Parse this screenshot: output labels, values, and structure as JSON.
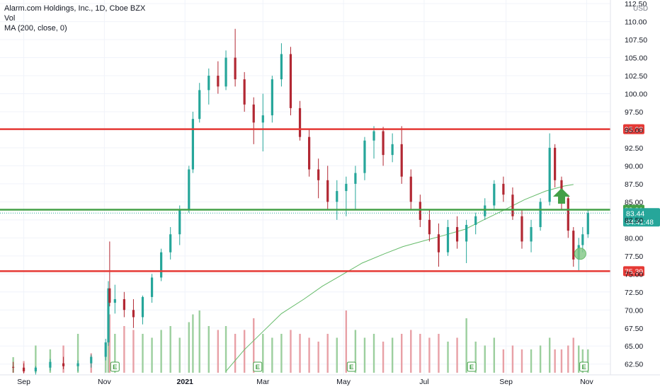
{
  "legend": {
    "title": "Alarm.com Holdings, Inc., 1D, Cboe BZX",
    "vol": "Vol",
    "ma": "MA (200, close, 0)"
  },
  "price_axis": {
    "currency": "USD",
    "ticks": [
      "112.50",
      "110.00",
      "107.50",
      "105.00",
      "102.50",
      "100.00",
      "97.50",
      "95.00",
      "92.50",
      "90.00",
      "87.50",
      "85.00",
      "82.50",
      "80.00",
      "77.50",
      "75.00",
      "72.50",
      "70.00",
      "67.50",
      "65.00",
      "62.50"
    ]
  },
  "time_axis": {
    "labels": [
      "Sep",
      "Nov",
      "2021",
      "Mar",
      "May",
      "Jul",
      "Sep",
      "Nov"
    ]
  },
  "levels": [
    {
      "name": "resistance-line",
      "value": 95.08,
      "label": "95.08",
      "color": "#e53935"
    },
    {
      "name": "breakout-line",
      "value": 83.91,
      "label": "83.91",
      "color": "#43a047"
    },
    {
      "name": "support-line",
      "value": 75.39,
      "label": "75.39",
      "color": "#e53935"
    }
  ],
  "last_price": {
    "label": "83.44",
    "countdown": "04:41:48",
    "color": "#26a69a"
  },
  "earnings_markers": [
    "E",
    "E",
    "E",
    "E",
    "E"
  ],
  "colors": {
    "up": "#26a69a",
    "down": "#b22833",
    "vol_up": "#9ccf9e",
    "vol_down": "#e8a0a6",
    "ma": "#66bb6a",
    "arrow": "#43a047",
    "circle": "#81c784"
  },
  "chart_data": {
    "type": "candlestick",
    "title": "Alarm.com Holdings, Inc., 1D, Cboe BZX",
    "ylim": [
      61,
      113
    ],
    "x_start": "2020-08-14",
    "x_end": "2021-11-19",
    "candles_key": [
      "date",
      "open",
      "high",
      "low",
      "close"
    ],
    "candles": [
      [
        "2020-08-24",
        62.1,
        62.8,
        61.3,
        62.0
      ],
      [
        "2020-09-01",
        62.0,
        62.6,
        61.2,
        61.5
      ],
      [
        "2020-09-10",
        61.5,
        62.2,
        61.0,
        62.0
      ],
      [
        "2020-09-21",
        62.0,
        63.2,
        61.6,
        62.8
      ],
      [
        "2020-10-01",
        62.6,
        63.5,
        61.8,
        62.2
      ],
      [
        "2020-10-12",
        62.2,
        63.0,
        61.5,
        62.6
      ],
      [
        "2020-10-22",
        62.6,
        63.8,
        62.0,
        63.5
      ],
      [
        "2020-11-02",
        63.5,
        66.0,
        63.0,
        65.5
      ],
      [
        "2020-11-04",
        65.5,
        74.0,
        65.0,
        73.0
      ],
      [
        "2020-11-05",
        73.0,
        79.5,
        70.5,
        71.0
      ],
      [
        "2020-11-09",
        71.0,
        73.5,
        69.5,
        71.5
      ],
      [
        "2020-11-16",
        71.5,
        72.5,
        69.0,
        70.0
      ],
      [
        "2020-11-23",
        70.0,
        71.5,
        67.5,
        69.0
      ],
      [
        "2020-11-30",
        69.0,
        72.0,
        68.0,
        71.8
      ],
      [
        "2020-12-07",
        71.8,
        75.0,
        71.0,
        74.5
      ],
      [
        "2020-12-14",
        74.5,
        78.5,
        74.0,
        78.0
      ],
      [
        "2020-12-21",
        78.0,
        81.5,
        77.0,
        80.5
      ],
      [
        "2020-12-28",
        80.5,
        84.5,
        79.0,
        84.0
      ],
      [
        "2021-01-04",
        84.0,
        90.0,
        83.5,
        89.5
      ],
      [
        "2021-01-07",
        89.5,
        97.5,
        89.0,
        96.5
      ],
      [
        "2021-01-12",
        96.5,
        101.5,
        96.0,
        100.5
      ],
      [
        "2021-01-19",
        100.5,
        103.5,
        98.5,
        102.5
      ],
      [
        "2021-01-26",
        102.5,
        104.5,
        100.0,
        101.0
      ],
      [
        "2021-02-01",
        101.0,
        106.0,
        100.5,
        105.0
      ],
      [
        "2021-02-08",
        105.0,
        109.0,
        101.0,
        102.0
      ],
      [
        "2021-02-15",
        102.0,
        103.0,
        97.5,
        98.5
      ],
      [
        "2021-02-22",
        98.5,
        99.5,
        93.0,
        96.0
      ],
      [
        "2021-03-01",
        96.0,
        100.0,
        92.0,
        97.0
      ],
      [
        "2021-03-08",
        97.0,
        102.5,
        96.0,
        102.0
      ],
      [
        "2021-03-15",
        102.0,
        107.0,
        101.0,
        105.5
      ],
      [
        "2021-03-22",
        105.5,
        106.5,
        97.0,
        98.0
      ],
      [
        "2021-03-29",
        98.0,
        99.0,
        93.5,
        94.0
      ],
      [
        "2021-04-05",
        94.0,
        95.0,
        88.5,
        89.5
      ],
      [
        "2021-04-12",
        89.5,
        91.0,
        85.5,
        88.0
      ],
      [
        "2021-04-19",
        88.0,
        90.0,
        84.0,
        85.0
      ],
      [
        "2021-04-26",
        85.0,
        88.0,
        82.5,
        86.5
      ],
      [
        "2021-05-03",
        86.5,
        88.5,
        83.0,
        87.5
      ],
      [
        "2021-05-10",
        87.5,
        90.0,
        84.0,
        89.0
      ],
      [
        "2021-05-17",
        89.0,
        94.0,
        88.0,
        93.5
      ],
      [
        "2021-05-24",
        93.5,
        95.5,
        91.0,
        94.8
      ],
      [
        "2021-05-31",
        94.8,
        95.4,
        90.0,
        91.5
      ],
      [
        "2021-06-07",
        91.5,
        94.5,
        90.5,
        93.0
      ],
      [
        "2021-06-14",
        93.0,
        95.5,
        87.5,
        88.5
      ],
      [
        "2021-06-21",
        88.5,
        89.5,
        84.0,
        85.0
      ],
      [
        "2021-06-28",
        85.0,
        86.0,
        81.5,
        82.5
      ],
      [
        "2021-07-05",
        82.5,
        84.0,
        79.5,
        80.5
      ],
      [
        "2021-07-12",
        80.5,
        82.0,
        76.0,
        78.0
      ],
      [
        "2021-07-19",
        78.0,
        82.5,
        77.5,
        81.5
      ],
      [
        "2021-07-26",
        81.5,
        83.0,
        78.5,
        79.5
      ],
      [
        "2021-08-02",
        79.5,
        82.5,
        76.5,
        81.8
      ],
      [
        "2021-08-09",
        81.8,
        83.5,
        80.5,
        83.0
      ],
      [
        "2021-08-16",
        83.0,
        85.5,
        82.5,
        84.5
      ],
      [
        "2021-08-23",
        84.5,
        88.0,
        84.0,
        87.5
      ],
      [
        "2021-08-30",
        87.5,
        88.5,
        85.0,
        86.0
      ],
      [
        "2021-09-06",
        86.0,
        87.0,
        82.5,
        83.0
      ],
      [
        "2021-09-13",
        83.0,
        84.0,
        78.5,
        79.5
      ],
      [
        "2021-09-20",
        79.5,
        82.5,
        78.0,
        81.5
      ],
      [
        "2021-09-27",
        81.5,
        85.5,
        81.0,
        85.0
      ],
      [
        "2021-10-04",
        85.0,
        94.5,
        84.5,
        92.5
      ],
      [
        "2021-10-08",
        92.5,
        93.0,
        87.0,
        88.0
      ],
      [
        "2021-10-13",
        88.0,
        88.5,
        84.0,
        85.5
      ],
      [
        "2021-10-18",
        85.5,
        86.0,
        80.0,
        81.0
      ],
      [
        "2021-10-22",
        81.0,
        81.5,
        76.0,
        77.0
      ],
      [
        "2021-10-26",
        77.0,
        80.0,
        75.5,
        79.0
      ],
      [
        "2021-10-29",
        79.0,
        81.5,
        78.0,
        80.5
      ],
      [
        "2021-11-02",
        80.5,
        84.0,
        80.0,
        83.44
      ]
    ],
    "ma200": {
      "name": "MA (200, close, 0)",
      "points": [
        [
          "2021-02-01",
          61.5
        ],
        [
          "2021-02-15",
          64.5
        ],
        [
          "2021-03-01",
          67.0
        ],
        [
          "2021-03-15",
          69.5
        ],
        [
          "2021-04-01",
          71.5
        ],
        [
          "2021-04-15",
          73.3
        ],
        [
          "2021-05-01",
          75.0
        ],
        [
          "2021-05-15",
          76.5
        ],
        [
          "2021-06-01",
          77.8
        ],
        [
          "2021-06-15",
          78.8
        ],
        [
          "2021-07-01",
          79.6
        ],
        [
          "2021-07-15",
          80.3
        ],
        [
          "2021-08-01",
          81.2
        ],
        [
          "2021-08-15",
          82.5
        ],
        [
          "2021-09-01",
          84.0
        ],
        [
          "2021-09-15",
          85.3
        ],
        [
          "2021-10-01",
          86.5
        ],
        [
          "2021-10-15",
          87.2
        ],
        [
          "2021-10-22",
          87.4
        ]
      ]
    },
    "volume": {
      "scale_note": "relative bar heights",
      "bars": [
        [
          "2020-08-24",
          0.2,
          1
        ],
        [
          "2020-09-01",
          0.15,
          0
        ],
        [
          "2020-09-10",
          0.35,
          1
        ],
        [
          "2020-09-21",
          0.3,
          1
        ],
        [
          "2020-10-01",
          0.35,
          0
        ],
        [
          "2020-10-12",
          0.5,
          1
        ],
        [
          "2020-10-22",
          0.25,
          0
        ],
        [
          "2020-11-02",
          0.35,
          1
        ],
        [
          "2020-11-04",
          0.95,
          1
        ],
        [
          "2020-11-05",
          0.75,
          0
        ],
        [
          "2020-11-09",
          0.5,
          1
        ],
        [
          "2020-11-16",
          0.6,
          0
        ],
        [
          "2020-11-23",
          0.55,
          0
        ],
        [
          "2020-11-30",
          0.5,
          1
        ],
        [
          "2020-12-07",
          0.45,
          1
        ],
        [
          "2020-12-14",
          0.55,
          1
        ],
        [
          "2020-12-21",
          0.6,
          1
        ],
        [
          "2020-12-28",
          0.45,
          1
        ],
        [
          "2021-01-04",
          0.65,
          1
        ],
        [
          "2021-01-07",
          0.75,
          1
        ],
        [
          "2021-01-12",
          0.8,
          1
        ],
        [
          "2021-01-19",
          0.6,
          1
        ],
        [
          "2021-01-26",
          0.55,
          0
        ],
        [
          "2021-02-01",
          0.6,
          1
        ],
        [
          "2021-02-08",
          0.5,
          0
        ],
        [
          "2021-02-15",
          0.55,
          0
        ],
        [
          "2021-02-22",
          0.7,
          0
        ],
        [
          "2021-03-01",
          0.5,
          1
        ],
        [
          "2021-03-08",
          0.45,
          1
        ],
        [
          "2021-03-15",
          0.5,
          1
        ],
        [
          "2021-03-22",
          0.55,
          0
        ],
        [
          "2021-03-29",
          0.5,
          0
        ],
        [
          "2021-04-05",
          0.45,
          0
        ],
        [
          "2021-04-12",
          0.4,
          0
        ],
        [
          "2021-04-19",
          0.5,
          0
        ],
        [
          "2021-04-26",
          0.45,
          1
        ],
        [
          "2021-05-03",
          0.8,
          0
        ],
        [
          "2021-05-10",
          0.55,
          1
        ],
        [
          "2021-05-17",
          0.45,
          1
        ],
        [
          "2021-05-24",
          0.5,
          1
        ],
        [
          "2021-05-31",
          0.4,
          0
        ],
        [
          "2021-06-07",
          0.45,
          1
        ],
        [
          "2021-06-14",
          0.5,
          0
        ],
        [
          "2021-06-21",
          0.55,
          0
        ],
        [
          "2021-06-28",
          0.5,
          0
        ],
        [
          "2021-07-05",
          0.45,
          0
        ],
        [
          "2021-07-12",
          0.5,
          0
        ],
        [
          "2021-07-19",
          0.4,
          1
        ],
        [
          "2021-07-26",
          0.45,
          0
        ],
        [
          "2021-08-02",
          0.7,
          1
        ],
        [
          "2021-08-09",
          0.4,
          1
        ],
        [
          "2021-08-16",
          0.35,
          1
        ],
        [
          "2021-08-23",
          0.45,
          1
        ],
        [
          "2021-08-30",
          0.3,
          0
        ],
        [
          "2021-09-06",
          0.35,
          0
        ],
        [
          "2021-09-13",
          0.3,
          0
        ],
        [
          "2021-09-20",
          0.3,
          1
        ],
        [
          "2021-09-27",
          0.35,
          1
        ],
        [
          "2021-10-04",
          0.45,
          1
        ],
        [
          "2021-10-08",
          0.3,
          0
        ],
        [
          "2021-10-13",
          0.3,
          0
        ],
        [
          "2021-10-18",
          0.35,
          0
        ],
        [
          "2021-10-22",
          0.45,
          0
        ],
        [
          "2021-10-26",
          0.35,
          1
        ],
        [
          "2021-10-29",
          0.3,
          1
        ],
        [
          "2021-11-02",
          0.3,
          1
        ]
      ]
    },
    "horizontal_levels": [
      95.08,
      83.91,
      75.39
    ],
    "legend_position": "top-left",
    "grid": true
  }
}
